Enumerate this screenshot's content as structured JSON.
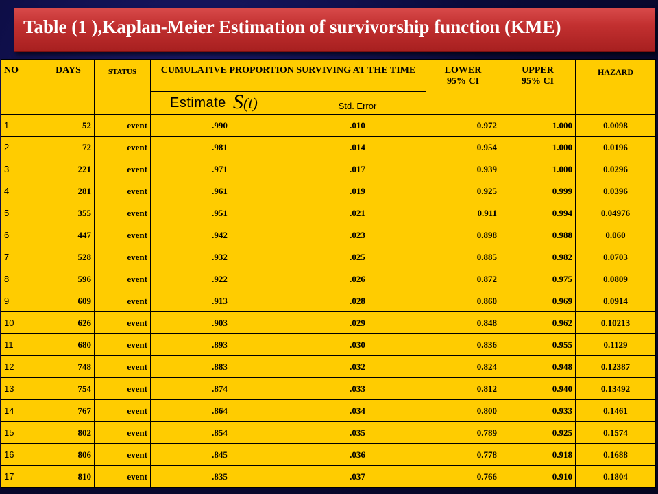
{
  "title": "Table (1 ),Kaplan-Meier Estimation of  survivorship function (KME)",
  "headers": {
    "no": "NO",
    "days": "DAYS",
    "status": "STATUS",
    "cumulative": "CUMULATIVE PROPORTION SURVIVING AT THE TIME",
    "lower": "LOWER 95% CI",
    "upper": "UPPER 95% CI",
    "hazard": "HAZARD",
    "estimate": "Estimate",
    "estimate_symbol": "S",
    "estimate_hat": "^",
    "estimate_arg": "(t)",
    "std_error": "Std. Error"
  },
  "rows": [
    {
      "no": "1",
      "days": "52",
      "status": "event",
      "estimate": ".990",
      "std_error": ".010",
      "lower": "0.972",
      "upper": "1.000",
      "hazard": "0.0098"
    },
    {
      "no": "2",
      "days": "72",
      "status": "event",
      "estimate": ".981",
      "std_error": ".014",
      "lower": "0.954",
      "upper": "1.000",
      "hazard": "0.0196"
    },
    {
      "no": "3",
      "days": "221",
      "status": "event",
      "estimate": ".971",
      "std_error": ".017",
      "lower": "0.939",
      "upper": "1.000",
      "hazard": "0.0296"
    },
    {
      "no": "4",
      "days": "281",
      "status": "event",
      "estimate": ".961",
      "std_error": ".019",
      "lower": "0.925",
      "upper": "0.999",
      "hazard": "0.0396"
    },
    {
      "no": "5",
      "days": "355",
      "status": "event",
      "estimate": ".951",
      "std_error": ".021",
      "lower": "0.911",
      "upper": "0.994",
      "hazard": "0.04976"
    },
    {
      "no": "6",
      "days": "447",
      "status": "event",
      "estimate": ".942",
      "std_error": ".023",
      "lower": "0.898",
      "upper": "0.988",
      "hazard": "0.060"
    },
    {
      "no": "7",
      "days": "528",
      "status": "event",
      "estimate": ".932",
      "std_error": ".025",
      "lower": "0.885",
      "upper": "0.982",
      "hazard": "0.0703"
    },
    {
      "no": "8",
      "days": "596",
      "status": "event",
      "estimate": ".922",
      "std_error": ".026",
      "lower": "0.872",
      "upper": "0.975",
      "hazard": "0.0809"
    },
    {
      "no": "9",
      "days": "609",
      "status": "event",
      "estimate": ".913",
      "std_error": ".028",
      "lower": "0.860",
      "upper": "0.969",
      "hazard": "0.0914"
    },
    {
      "no": "10",
      "days": "626",
      "status": "event",
      "estimate": ".903",
      "std_error": ".029",
      "lower": "0.848",
      "upper": "0.962",
      "hazard": "0.10213"
    },
    {
      "no": "11",
      "days": "680",
      "status": "event",
      "estimate": ".893",
      "std_error": ".030",
      "lower": "0.836",
      "upper": "0.955",
      "hazard": "0.1129"
    },
    {
      "no": "12",
      "days": "748",
      "status": "event",
      "estimate": ".883",
      "std_error": ".032",
      "lower": "0.824",
      "upper": "0.948",
      "hazard": "0.12387"
    },
    {
      "no": "13",
      "days": "754",
      "status": "event",
      "estimate": ".874",
      "std_error": ".033",
      "lower": "0.812",
      "upper": "0.940",
      "hazard": "0.13492"
    },
    {
      "no": "14",
      "days": "767",
      "status": "event",
      "estimate": ".864",
      "std_error": ".034",
      "lower": "0.800",
      "upper": "0.933",
      "hazard": "0.1461"
    },
    {
      "no": "15",
      "days": "802",
      "status": "event",
      "estimate": ".854",
      "std_error": ".035",
      "lower": "0.789",
      "upper": "0.925",
      "hazard": "0.1574"
    },
    {
      "no": "16",
      "days": "806",
      "status": "event",
      "estimate": ".845",
      "std_error": ".036",
      "lower": "0.778",
      "upper": "0.918",
      "hazard": "0.1688"
    },
    {
      "no": "17",
      "days": "810",
      "status": "event",
      "estimate": ".835",
      "std_error": ".037",
      "lower": "0.766",
      "upper": "0.910",
      "hazard": "0.1804"
    }
  ],
  "colors": {
    "table_fill": "#ffcc00",
    "title_bar": "#c23030",
    "title_text": "#ffffff",
    "background": "#0a0a3a"
  }
}
